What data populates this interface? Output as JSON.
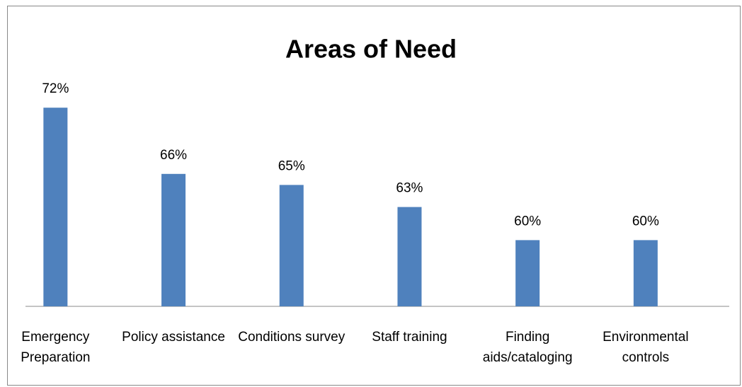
{
  "chart_data": {
    "type": "bar",
    "title": "Areas of Need",
    "categories": [
      "Emergency Preparation",
      "Policy assistance",
      "Conditions survey",
      "Staff training",
      "Finding aids/cataloging",
      "Environmental controls"
    ],
    "values": [
      72,
      66,
      65,
      63,
      60,
      60
    ],
    "value_labels": [
      "72%",
      "66%",
      "65%",
      "63%",
      "60%",
      "60%"
    ],
    "color": "#4f81bd",
    "ylim": [
      54,
      74
    ]
  }
}
